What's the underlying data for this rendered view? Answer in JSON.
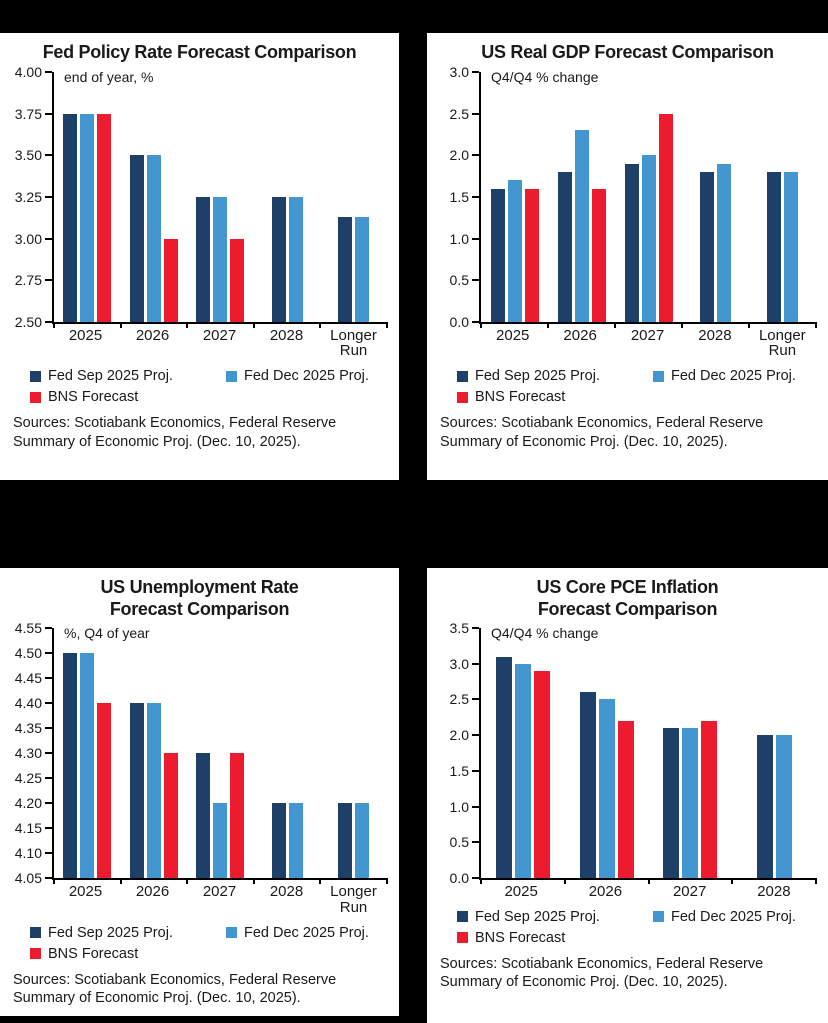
{
  "page": {
    "background_color": "#000000",
    "panel_color": "#ffffff"
  },
  "palette": {
    "navy": "#1E4068",
    "light_blue": "#4496D0",
    "red": "#ED1B2E",
    "axis": "#000000",
    "text": "#1a1a1a"
  },
  "sources_text": "Sources: Scotiabank Economics, Federal Reserve Summary of Economic Proj. (Dec. 10, 2025).",
  "chart_data": [
    {
      "id": "fed-policy-rate",
      "type": "bar",
      "title_lines": [
        "Fed Policy Rate Forecast Comparison"
      ],
      "unit_label": "end of year, %",
      "ylim": [
        2.5,
        4.0
      ],
      "ystep": 0.25,
      "ydecimals": 2,
      "grid": false,
      "legend_position": "bottom",
      "categories": [
        "2025",
        "2026",
        "2027",
        "2028",
        "Longer\nRun"
      ],
      "series": [
        {
          "key": "fed-sep",
          "name": "Fed Sep 2025 Proj.",
          "color": "#1E4068",
          "values": [
            3.75,
            3.5,
            3.25,
            3.25,
            3.13
          ]
        },
        {
          "key": "fed-dec",
          "name": "Fed Dec 2025 Proj.",
          "color": "#4496D0",
          "values": [
            3.75,
            3.5,
            3.25,
            3.25,
            3.13
          ]
        },
        {
          "key": "bns",
          "name": "BNS Forecast",
          "color": "#ED1B2E",
          "values": [
            3.75,
            3.0,
            3.0,
            null,
            null
          ]
        }
      ]
    },
    {
      "id": "us-real-gdp",
      "type": "bar",
      "title_lines": [
        "US Real GDP Forecast Comparison"
      ],
      "unit_label": "Q4/Q4 % change",
      "ylim": [
        0.0,
        3.0
      ],
      "ystep": 0.5,
      "ydecimals": 1,
      "grid": false,
      "legend_position": "bottom",
      "categories": [
        "2025",
        "2026",
        "2027",
        "2028",
        "Longer\nRun"
      ],
      "series": [
        {
          "key": "fed-sep",
          "name": "Fed Sep 2025 Proj.",
          "color": "#1E4068",
          "values": [
            1.6,
            1.8,
            1.9,
            1.8,
            1.8
          ]
        },
        {
          "key": "fed-dec",
          "name": "Fed Dec 2025 Proj.",
          "color": "#4496D0",
          "values": [
            1.7,
            2.3,
            2.0,
            1.9,
            1.8
          ]
        },
        {
          "key": "bns",
          "name": "BNS Forecast",
          "color": "#ED1B2E",
          "values": [
            1.6,
            1.6,
            2.5,
            null,
            null
          ]
        }
      ]
    },
    {
      "id": "us-unemployment-rate",
      "type": "bar",
      "title_lines": [
        "US Unemployment Rate",
        "Forecast Comparison"
      ],
      "unit_label": "%, Q4 of year",
      "ylim": [
        4.05,
        4.55
      ],
      "ystep": 0.05,
      "ydecimals": 2,
      "grid": false,
      "legend_position": "bottom",
      "categories": [
        "2025",
        "2026",
        "2027",
        "2028",
        "Longer\nRun"
      ],
      "series": [
        {
          "key": "fed-sep",
          "name": "Fed Sep 2025 Proj.",
          "color": "#1E4068",
          "values": [
            4.5,
            4.4,
            4.3,
            4.2,
            4.2
          ]
        },
        {
          "key": "fed-dec",
          "name": "Fed Dec 2025 Proj.",
          "color": "#4496D0",
          "values": [
            4.5,
            4.4,
            4.2,
            4.2,
            4.2
          ]
        },
        {
          "key": "bns",
          "name": "BNS Forecast",
          "color": "#ED1B2E",
          "values": [
            4.4,
            4.3,
            4.3,
            null,
            null
          ]
        }
      ]
    },
    {
      "id": "us-core-pce-inflation",
      "type": "bar",
      "title_lines": [
        "US Core PCE Inflation",
        "Forecast Comparison"
      ],
      "unit_label": "Q4/Q4 % change",
      "ylim": [
        0.0,
        3.5
      ],
      "ystep": 0.5,
      "ydecimals": 1,
      "grid": false,
      "legend_position": "bottom",
      "categories": [
        "2025",
        "2026",
        "2027",
        "2028"
      ],
      "series": [
        {
          "key": "fed-sep",
          "name": "Fed Sep 2025 Proj.",
          "color": "#1E4068",
          "values": [
            3.1,
            2.6,
            2.1,
            2.0
          ]
        },
        {
          "key": "fed-dec",
          "name": "Fed Dec 2025 Proj.",
          "color": "#4496D0",
          "values": [
            3.0,
            2.5,
            2.1,
            2.0
          ]
        },
        {
          "key": "bns",
          "name": "BNS Forecast",
          "color": "#ED1B2E",
          "values": [
            2.9,
            2.2,
            2.2,
            null
          ]
        }
      ]
    }
  ]
}
